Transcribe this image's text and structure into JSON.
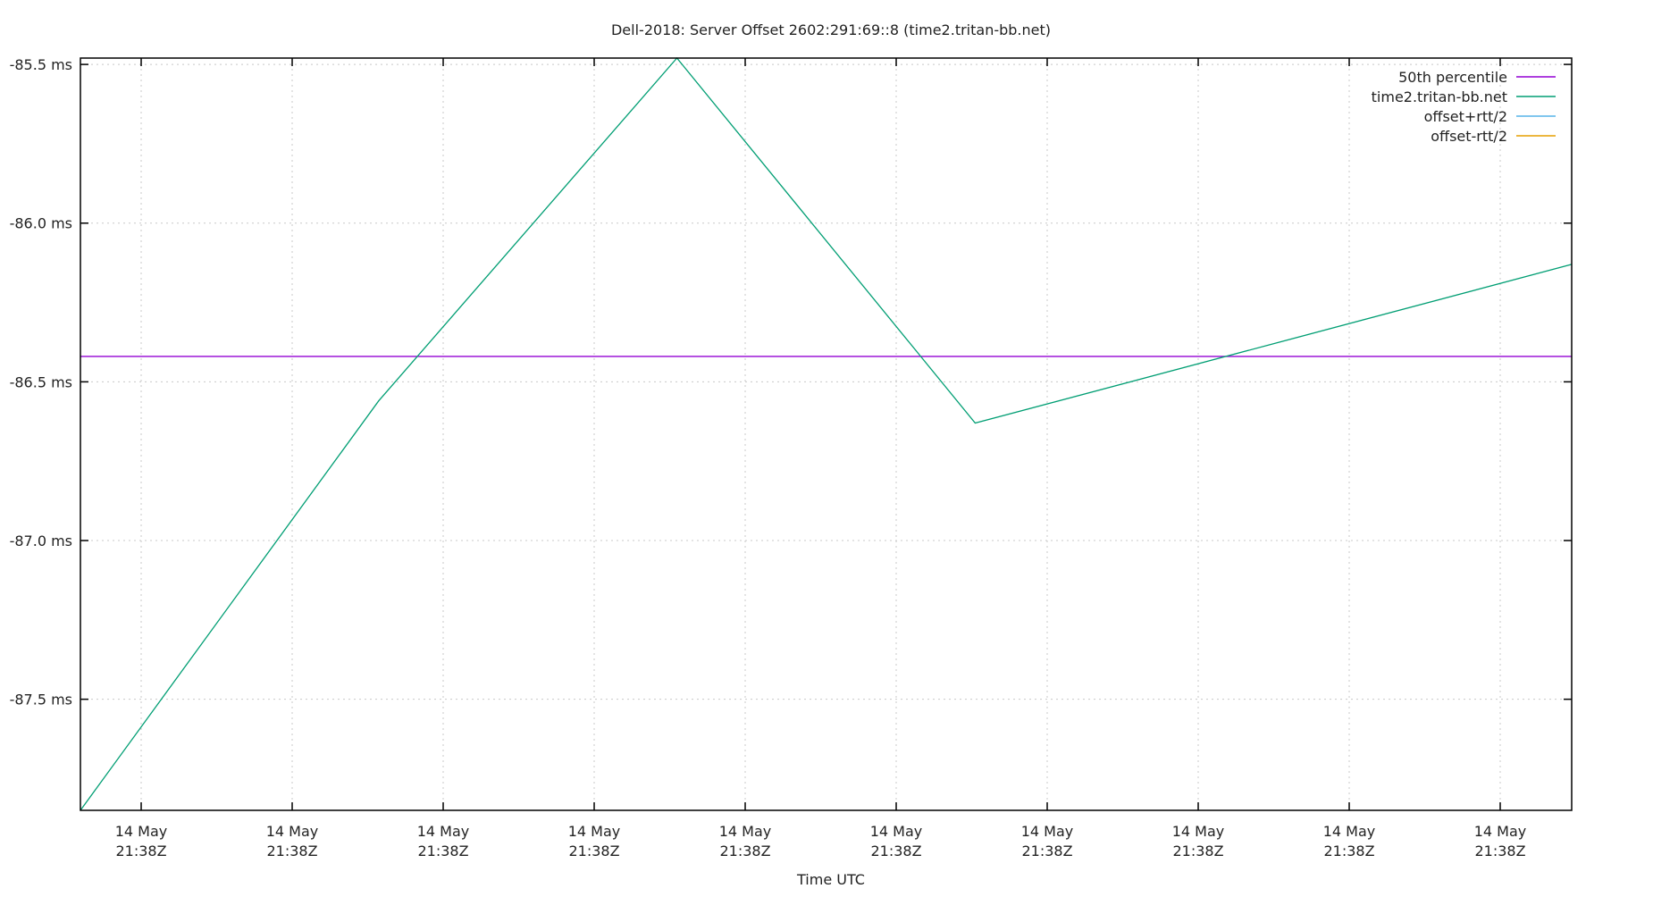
{
  "chart_data": {
    "type": "line",
    "title": "Dell-2018: Server Offset 2602:291:69::8 (time2.tritan-bb.net)",
    "xlabel": "Time UTC",
    "ylabel": "",
    "x_tick_labels": [
      [
        "14 May",
        "21:38Z"
      ],
      [
        "14 May",
        "21:38Z"
      ],
      [
        "14 May",
        "21:38Z"
      ],
      [
        "14 May",
        "21:38Z"
      ],
      [
        "14 May",
        "21:38Z"
      ],
      [
        "14 May",
        "21:38Z"
      ],
      [
        "14 May",
        "21:38Z"
      ],
      [
        "14 May",
        "21:38Z"
      ],
      [
        "14 May",
        "21:38Z"
      ],
      [
        "14 May",
        "21:38Z"
      ]
    ],
    "y_ticks": [
      -85.5,
      -86.0,
      -86.5,
      -87.0,
      -87.5
    ],
    "y_tick_labels": [
      "-85.5 ms",
      "-86.0 ms",
      "-86.5 ms",
      "-87.0 ms",
      "-87.5 ms"
    ],
    "ylim": [
      -87.85,
      -85.48
    ],
    "grid": true,
    "legend_position": "top-right",
    "series": [
      {
        "name": "50th percentile",
        "color": "#9400d3",
        "x": [
          0,
          5
        ],
        "values": [
          -86.42,
          -86.42
        ]
      },
      {
        "name": "time2.tritan-bb.net",
        "color": "#009e73",
        "x": [
          0,
          1,
          2,
          3,
          5
        ],
        "values": [
          -87.85,
          -86.56,
          -85.48,
          -86.63,
          -86.13
        ]
      },
      {
        "name": "offset+rtt/2",
        "color": "#56b4e9",
        "x": [],
        "values": []
      },
      {
        "name": "offset-rtt/2",
        "color": "#e69f00",
        "x": [],
        "values": []
      }
    ],
    "xlim": [
      0,
      5
    ]
  }
}
